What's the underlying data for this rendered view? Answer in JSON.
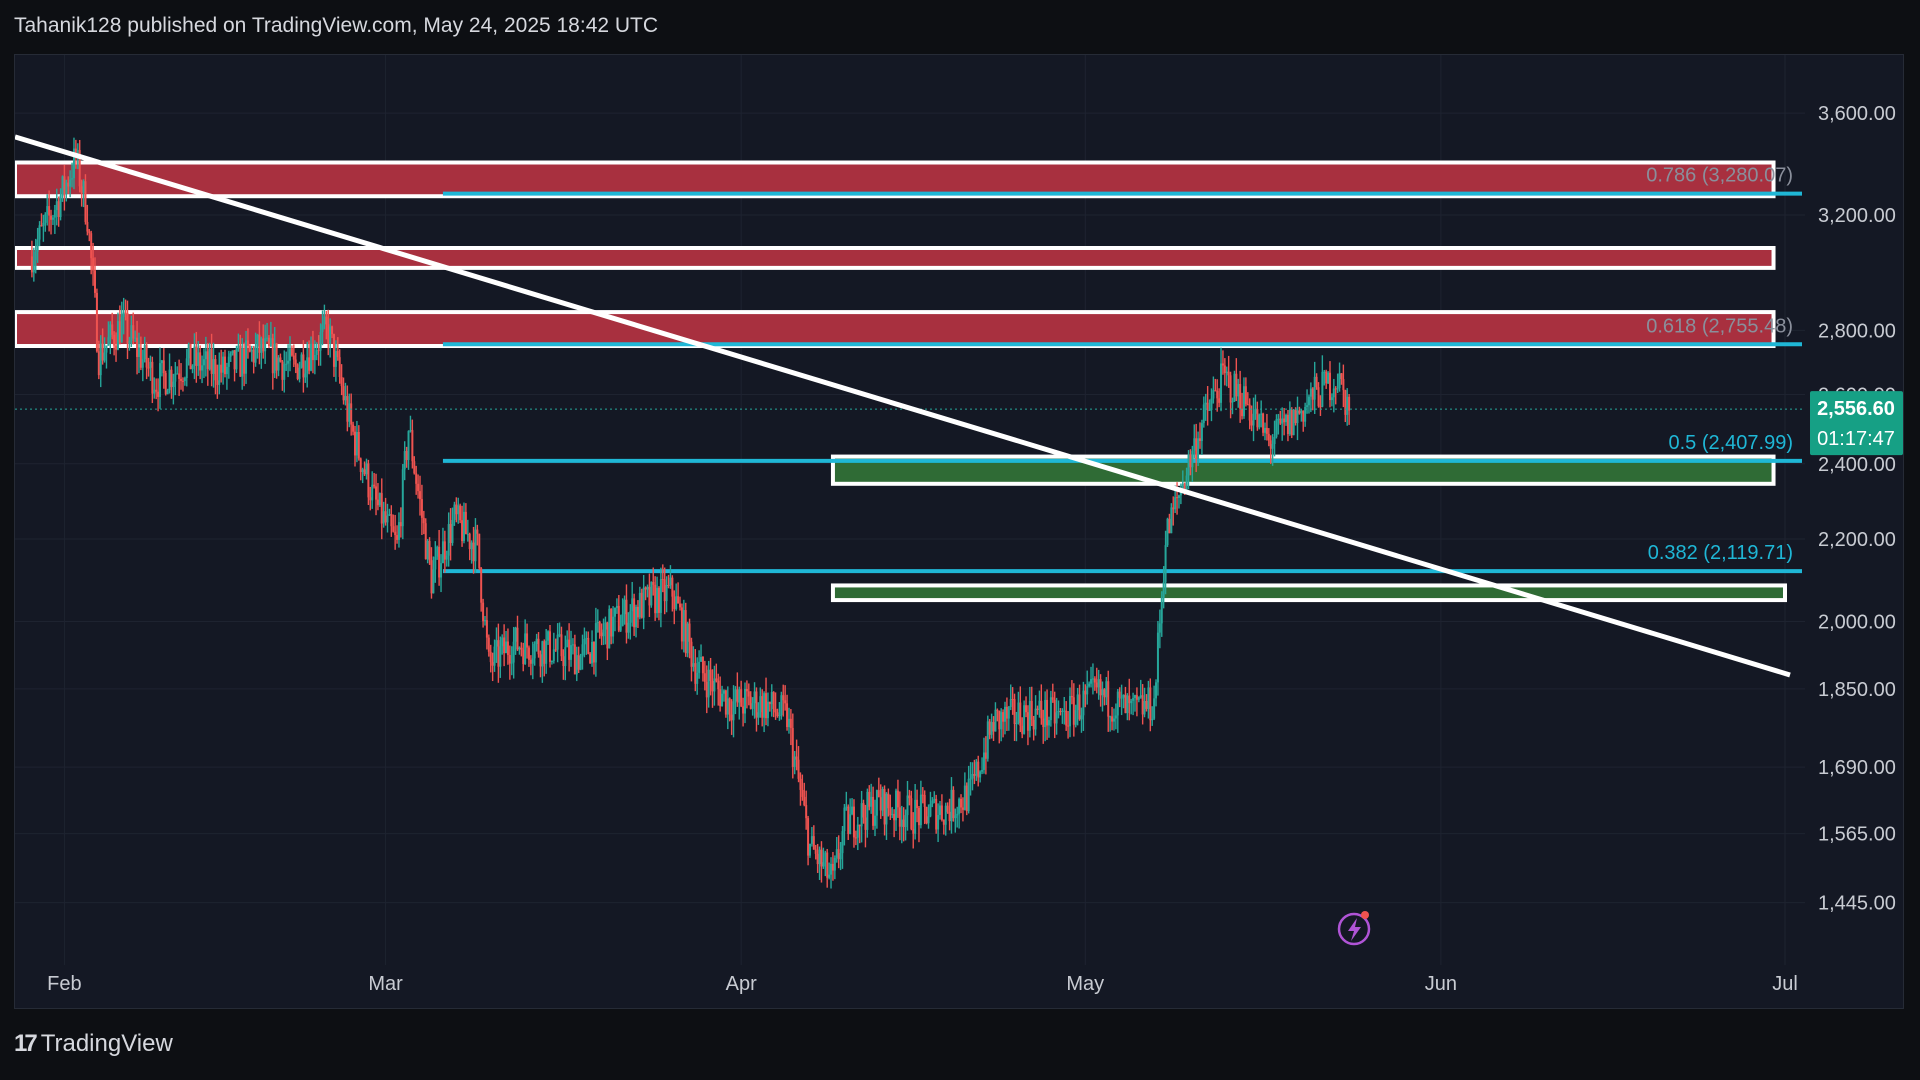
{
  "header": {
    "author": "Tahanik128",
    "published_text": "published on TradingView.com,",
    "date": "May 24, 2025 18:42 UTC"
  },
  "footer": {
    "logo_mark": "17",
    "logo_text": "TradingView"
  },
  "colors": {
    "background": "#141824",
    "up": "#26a69a",
    "down": "#ef5350",
    "resistance_fill": "#a8303f",
    "support_fill": "#2f6b35",
    "fib_line": "#1fb7d6",
    "trendline": "#ffffff",
    "price_tag": "#16a085"
  },
  "price_tag": {
    "price": "2,556.60",
    "countdown": "01:17:47"
  },
  "alert_icon": "lightning-alert-icon",
  "chart_data": {
    "type": "candlestick",
    "symbol_price_last": 2556.6,
    "x_ticks": [
      "Feb",
      "Mar",
      "Apr",
      "May",
      "Jun",
      "Jul"
    ],
    "x_range": [
      "2025-01-29",
      "2025-07-01"
    ],
    "y_ticks": [
      "3,600.00",
      "3,200.00",
      "2,800.00",
      "2,600.00",
      "2,400.00",
      "2,200.00",
      "2,000.00",
      "1,850.00",
      "1,690.00",
      "1,565.00",
      "1,445.00"
    ],
    "y_scale": "log",
    "y_range": [
      1360,
      3850
    ],
    "fib_levels": [
      {
        "label": "0.786 (3,280.07)",
        "value": 3280.07,
        "start": "2025-03-06"
      },
      {
        "label": "0.618 (2,755.48)",
        "value": 2755.48,
        "start": "2025-03-06"
      },
      {
        "label": "0.5 (2,407.99)",
        "value": 2407.99,
        "start": "2025-03-06"
      },
      {
        "label": "0.382 (2,119.71)",
        "value": 2119.71,
        "start": "2025-03-06"
      }
    ],
    "resistance_zones": [
      {
        "low": 3270,
        "high": 3400,
        "start": "2025-01-29",
        "end": "2025-06-30"
      },
      {
        "low": 3010,
        "high": 3080,
        "start": "2025-01-29",
        "end": "2025-06-30"
      },
      {
        "low": 2750,
        "high": 2860,
        "start": "2025-01-29",
        "end": "2025-06-30"
      }
    ],
    "support_zones": [
      {
        "low": 2345,
        "high": 2420,
        "start": "2025-04-09",
        "end": "2025-06-30"
      },
      {
        "low": 2050,
        "high": 2085,
        "start": "2025-04-09",
        "end": "2025-07-01"
      }
    ],
    "trendline": {
      "from": {
        "date": "2025-01-29",
        "price": 3470
      },
      "to": {
        "date": "2025-07-01",
        "price": 1880
      }
    },
    "price_path": [
      [
        "2025-01-29",
        3050
      ],
      [
        "2025-02-01",
        3300
      ],
      [
        "2025-02-02",
        3420
      ],
      [
        "2025-02-03",
        3200
      ],
      [
        "2025-02-04",
        2720
      ],
      [
        "2025-02-06",
        2820
      ],
      [
        "2025-02-09",
        2640
      ],
      [
        "2025-02-12",
        2700
      ],
      [
        "2025-02-15",
        2670
      ],
      [
        "2025-02-18",
        2740
      ],
      [
        "2025-02-21",
        2680
      ],
      [
        "2025-02-24",
        2800
      ],
      [
        "2025-02-26",
        2500
      ],
      [
        "2025-02-28",
        2300
      ],
      [
        "2025-03-02",
        2180
      ],
      [
        "2025-03-03",
        2500
      ],
      [
        "2025-03-05",
        2100
      ],
      [
        "2025-03-07",
        2250
      ],
      [
        "2025-03-09",
        2180
      ],
      [
        "2025-03-10",
        1900
      ],
      [
        "2025-03-12",
        1950
      ],
      [
        "2025-03-15",
        1940
      ],
      [
        "2025-03-18",
        1920
      ],
      [
        "2025-03-21",
        2000
      ],
      [
        "2025-03-24",
        2050
      ],
      [
        "2025-03-26",
        2070
      ],
      [
        "2025-03-28",
        1900
      ],
      [
        "2025-03-31",
        1820
      ],
      [
        "2025-04-03",
        1820
      ],
      [
        "2025-04-05",
        1790
      ],
      [
        "2025-04-07",
        1540
      ],
      [
        "2025-04-09",
        1480
      ],
      [
        "2025-04-10",
        1580
      ],
      [
        "2025-04-13",
        1620
      ],
      [
        "2025-04-16",
        1600
      ],
      [
        "2025-04-19",
        1610
      ],
      [
        "2025-04-21",
        1640
      ],
      [
        "2025-04-23",
        1780
      ],
      [
        "2025-04-26",
        1800
      ],
      [
        "2025-04-29",
        1790
      ],
      [
        "2025-05-02",
        1840
      ],
      [
        "2025-05-05",
        1800
      ],
      [
        "2025-05-07",
        1820
      ],
      [
        "2025-05-08",
        2200
      ],
      [
        "2025-05-09",
        2300
      ],
      [
        "2025-05-11",
        2500
      ],
      [
        "2025-05-13",
        2650
      ],
      [
        "2025-05-15",
        2580
      ],
      [
        "2025-05-17",
        2460
      ],
      [
        "2025-05-19",
        2520
      ],
      [
        "2025-05-21",
        2600
      ],
      [
        "2025-05-23",
        2650
      ],
      [
        "2025-05-24",
        2556.6
      ]
    ]
  }
}
